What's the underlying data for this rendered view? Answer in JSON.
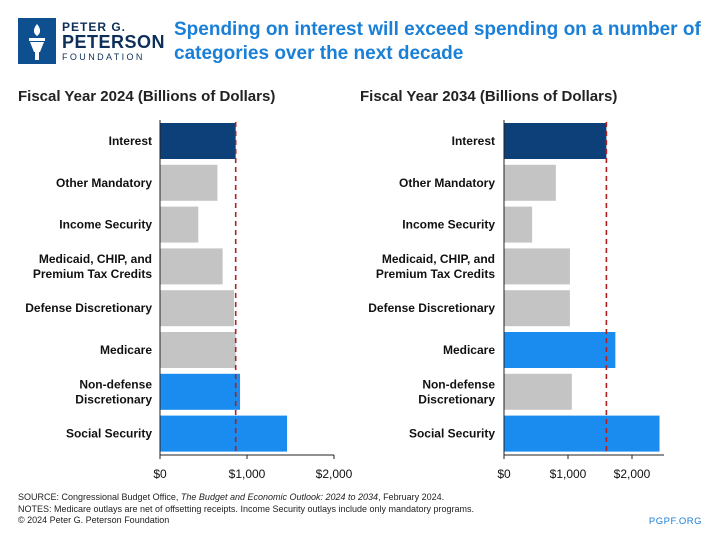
{
  "logo": {
    "line1": "PETER G.",
    "line2": "PETERSON",
    "line3": "FOUNDATION"
  },
  "headline": "Spending on interest will exceed spending on a number of categories over the next decade",
  "colors": {
    "interest": "#0d4078",
    "highlight": "#1a8cf0",
    "other": "#c4c4c4",
    "reference": "#b02020",
    "title": "#1a7fd6"
  },
  "chart_data": [
    {
      "type": "bar",
      "orientation": "horizontal",
      "title": "Fiscal Year 2024 (Billions of Dollars)",
      "categories": [
        "Interest",
        "Other Mandatory",
        "Income Security",
        "Medicaid, CHIP, and\nPremium Tax Credits",
        "Defense Discretionary",
        "Medicare",
        "Non-defense\nDiscretionary",
        "Social Security"
      ],
      "values": [
        870,
        660,
        440,
        720,
        850,
        870,
        920,
        1460
      ],
      "bar_roles": [
        "interest",
        "other",
        "other",
        "other",
        "other",
        "other",
        "highlight",
        "highlight"
      ],
      "reference_line": 870,
      "xlim": [
        0,
        2000
      ],
      "ticks": [
        0,
        1000,
        2000
      ],
      "tick_labels": [
        "$0",
        "$1,000",
        "$2,000"
      ]
    },
    {
      "type": "bar",
      "orientation": "horizontal",
      "title": "Fiscal Year 2034 (Billions of Dollars)",
      "categories": [
        "Interest",
        "Other Mandatory",
        "Income Security",
        "Medicaid, CHIP, and\nPremium Tax Credits",
        "Defense Discretionary",
        "Medicare",
        "Non-defense\nDiscretionary",
        "Social Security"
      ],
      "values": [
        1600,
        810,
        440,
        1030,
        1030,
        1740,
        1060,
        2430
      ],
      "bar_roles": [
        "interest",
        "other",
        "other",
        "other",
        "other",
        "highlight",
        "other",
        "highlight"
      ],
      "reference_line": 1600,
      "xlim": [
        0,
        2500
      ],
      "ticks": [
        0,
        1000,
        2000
      ],
      "tick_labels": [
        "$0",
        "$1,000",
        "$2,000"
      ]
    }
  ],
  "footer": {
    "source_prefix": "SOURCE: Congressional Budget Office, ",
    "source_title": "The Budget and Economic Outlook: 2024 to 2034",
    "source_suffix": ", February 2024.",
    "notes": "NOTES: Medicare outlays are net of offsetting receipts. Income Security outlays include only mandatory programs.",
    "copyright": "© 2024 Peter G. Peterson Foundation",
    "site": "PGPF.ORG"
  }
}
